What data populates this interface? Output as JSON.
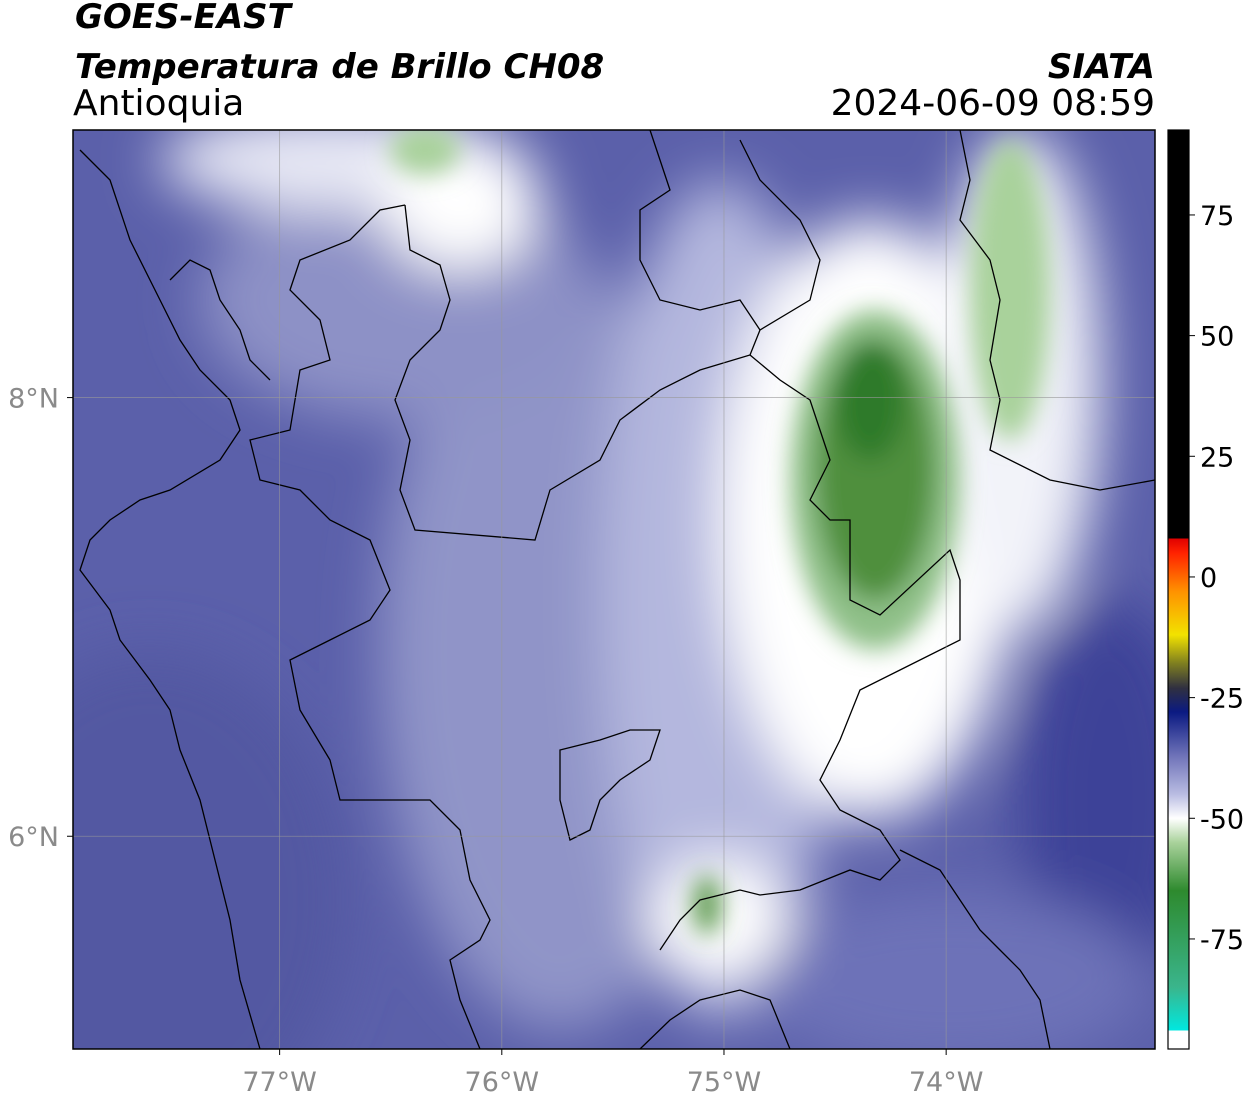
{
  "header": {
    "title": "GOES-EAST",
    "subtitle": "Temperatura de Brillo CH08",
    "region": "Antioquia",
    "source": "SIATA",
    "datetime": "2024-06-09 08:59"
  },
  "chart_data": {
    "type": "map",
    "xlim": [
      -77.93,
      -73.06
    ],
    "ylim": [
      5.03,
      9.22
    ],
    "xticks": [
      {
        "value": -77,
        "label": "77°W"
      },
      {
        "value": -76,
        "label": "76°W"
      },
      {
        "value": -75,
        "label": "75°W"
      },
      {
        "value": -74,
        "label": "74°W"
      }
    ],
    "yticks": [
      {
        "value": 6,
        "label": "6°N"
      },
      {
        "value": 8,
        "label": "8°N"
      }
    ],
    "grid": true,
    "colorbar": {
      "lim": [
        -97.8,
        92.6
      ],
      "ticks": [
        -75,
        -50,
        -25,
        0,
        25,
        50,
        75
      ],
      "colormap": [
        {
          "value": -97.8,
          "color": "#ffffff"
        },
        {
          "value": -94,
          "color": "#ffffff"
        },
        {
          "value": -94,
          "color": "#00e8e0"
        },
        {
          "value": -85,
          "color": "#3ab58c"
        },
        {
          "value": -65,
          "color": "#2e8a2e"
        },
        {
          "value": -55,
          "color": "#a9d29b"
        },
        {
          "value": -50,
          "color": "#ffffff"
        },
        {
          "value": -45,
          "color": "#b9bce2"
        },
        {
          "value": -37,
          "color": "#6e72b8"
        },
        {
          "value": -28,
          "color": "#0b1a82"
        },
        {
          "value": -23,
          "color": "#303040"
        },
        {
          "value": -18,
          "color": "#7d7d20"
        },
        {
          "value": -12,
          "color": "#f2e200"
        },
        {
          "value": -3,
          "color": "#ff9200"
        },
        {
          "value": 5,
          "color": "#ff2200"
        },
        {
          "value": 8,
          "color": "#e00000"
        },
        {
          "value": 8,
          "color": "#000000"
        },
        {
          "value": 92.6,
          "color": "#000000"
        }
      ]
    }
  }
}
